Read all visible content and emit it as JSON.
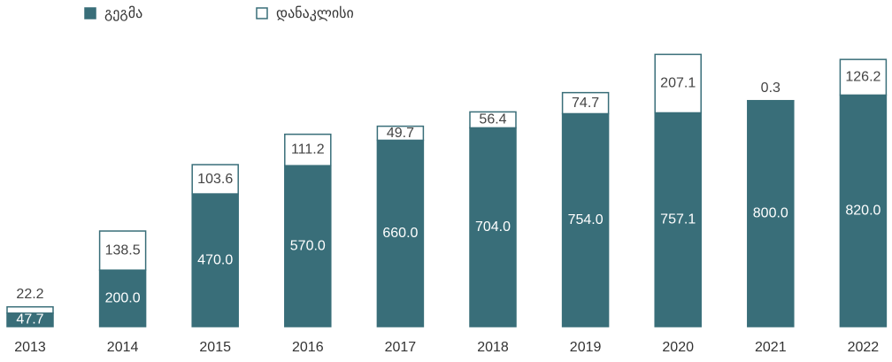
{
  "chart_data": {
    "type": "stacked_bar",
    "categories": [
      "2013",
      "2014",
      "2015",
      "2016",
      "2017",
      "2018",
      "2019",
      "2020",
      "2021",
      "2022"
    ],
    "series": [
      {
        "name": "გეგმა",
        "color": "#396e79",
        "values": [
          47.7,
          200.0,
          470.0,
          570.0,
          660.0,
          704.0,
          754.0,
          757.1,
          800.0,
          820.0
        ],
        "value_labels": [
          "47.7",
          "200.0",
          "470.0",
          "570.0",
          "660.0",
          "704.0",
          "754.0",
          "757.1",
          "800.0",
          "820.0"
        ]
      },
      {
        "name": "დანაკლისი",
        "color": "#ffffff",
        "values": [
          22.2,
          138.5,
          103.6,
          111.2,
          49.7,
          56.4,
          74.7,
          207.1,
          0.3,
          126.2
        ],
        "value_labels": [
          "22.2",
          "138.5",
          "103.6",
          "111.2",
          "49.7",
          "56.4",
          "74.7",
          "207.1",
          "0.3",
          "126.2"
        ]
      }
    ],
    "legend": "top-left"
  }
}
